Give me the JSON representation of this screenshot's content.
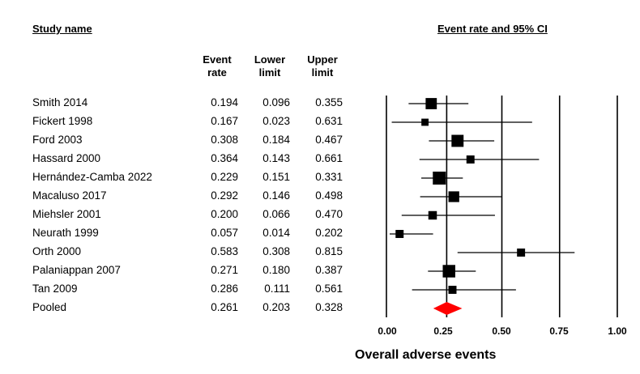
{
  "headers": {
    "study_name": "Study name",
    "panel_title": "Event rate and 95% CI",
    "event_rate_l1": "Event",
    "event_rate_l2": "rate",
    "lower_l1": "Lower",
    "lower_l2": "limit",
    "upper_l1": "Upper",
    "upper_l2": "limit"
  },
  "chart_data": {
    "type": "forest",
    "xlabel": "Overall adverse events",
    "xlim": [
      0.0,
      1.0
    ],
    "xticks": [
      "0.00",
      "0.25",
      "0.50",
      "0.75",
      "1.00"
    ],
    "xtick_values": [
      0.0,
      0.25,
      0.5,
      0.75,
      1.0
    ],
    "vertical_lines_at": [
      0.0,
      0.261,
      0.5,
      0.75,
      1.0
    ],
    "pooled_color": "#ff0000",
    "studies": [
      {
        "name": "Smith 2014",
        "rate": 0.194,
        "rate_s": "0.194",
        "lower": 0.096,
        "lower_s": "0.096",
        "upper": 0.355,
        "upper_s": "0.355",
        "weight": 0.8
      },
      {
        "name": "Fickert 1998",
        "rate": 0.167,
        "rate_s": "0.167",
        "lower": 0.023,
        "lower_s": "0.023",
        "upper": 0.631,
        "upper_s": "0.631",
        "weight": 0.35
      },
      {
        "name": "Ford 2003",
        "rate": 0.308,
        "rate_s": "0.308",
        "lower": 0.184,
        "lower_s": "0.184",
        "upper": 0.467,
        "upper_s": "0.467",
        "weight": 0.9
      },
      {
        "name": "Hassard 2000",
        "rate": 0.364,
        "rate_s": "0.364",
        "lower": 0.143,
        "lower_s": "0.143",
        "upper": 0.661,
        "upper_s": "0.661",
        "weight": 0.45
      },
      {
        "name": "Hernández-Camba 2022",
        "rate": 0.229,
        "rate_s": "0.229",
        "lower": 0.151,
        "lower_s": "0.151",
        "upper": 0.331,
        "upper_s": "0.331",
        "weight": 1.0
      },
      {
        "name": "Macaluso 2017",
        "rate": 0.292,
        "rate_s": "0.292",
        "lower": 0.146,
        "lower_s": "0.146",
        "upper": 0.498,
        "upper_s": "0.498",
        "weight": 0.75
      },
      {
        "name": "Miehsler 2001",
        "rate": 0.2,
        "rate_s": "0.200",
        "lower": 0.066,
        "lower_s": "0.066",
        "upper": 0.47,
        "upper_s": "0.470",
        "weight": 0.5
      },
      {
        "name": "Neurath 1999",
        "rate": 0.057,
        "rate_s": "0.057",
        "lower": 0.014,
        "lower_s": "0.014",
        "upper": 0.202,
        "upper_s": "0.202",
        "weight": 0.45
      },
      {
        "name": "Orth 2000",
        "rate": 0.583,
        "rate_s": "0.583",
        "lower": 0.308,
        "lower_s": "0.308",
        "upper": 0.815,
        "upper_s": "0.815",
        "weight": 0.45
      },
      {
        "name": "Palaniappan 2007",
        "rate": 0.271,
        "rate_s": "0.271",
        "lower": 0.18,
        "lower_s": "0.180",
        "upper": 0.387,
        "upper_s": "0.387",
        "weight": 0.95
      },
      {
        "name": "Tan 2009",
        "rate": 0.286,
        "rate_s": "0.286",
        "lower": 0.111,
        "lower_s": "0.111",
        "upper": 0.561,
        "upper_s": "0.561",
        "weight": 0.45
      }
    ],
    "pooled": {
      "name": "Pooled",
      "rate": 0.261,
      "rate_s": "0.261",
      "lower": 0.203,
      "lower_s": "0.203",
      "upper": 0.328,
      "upper_s": "0.328"
    }
  }
}
